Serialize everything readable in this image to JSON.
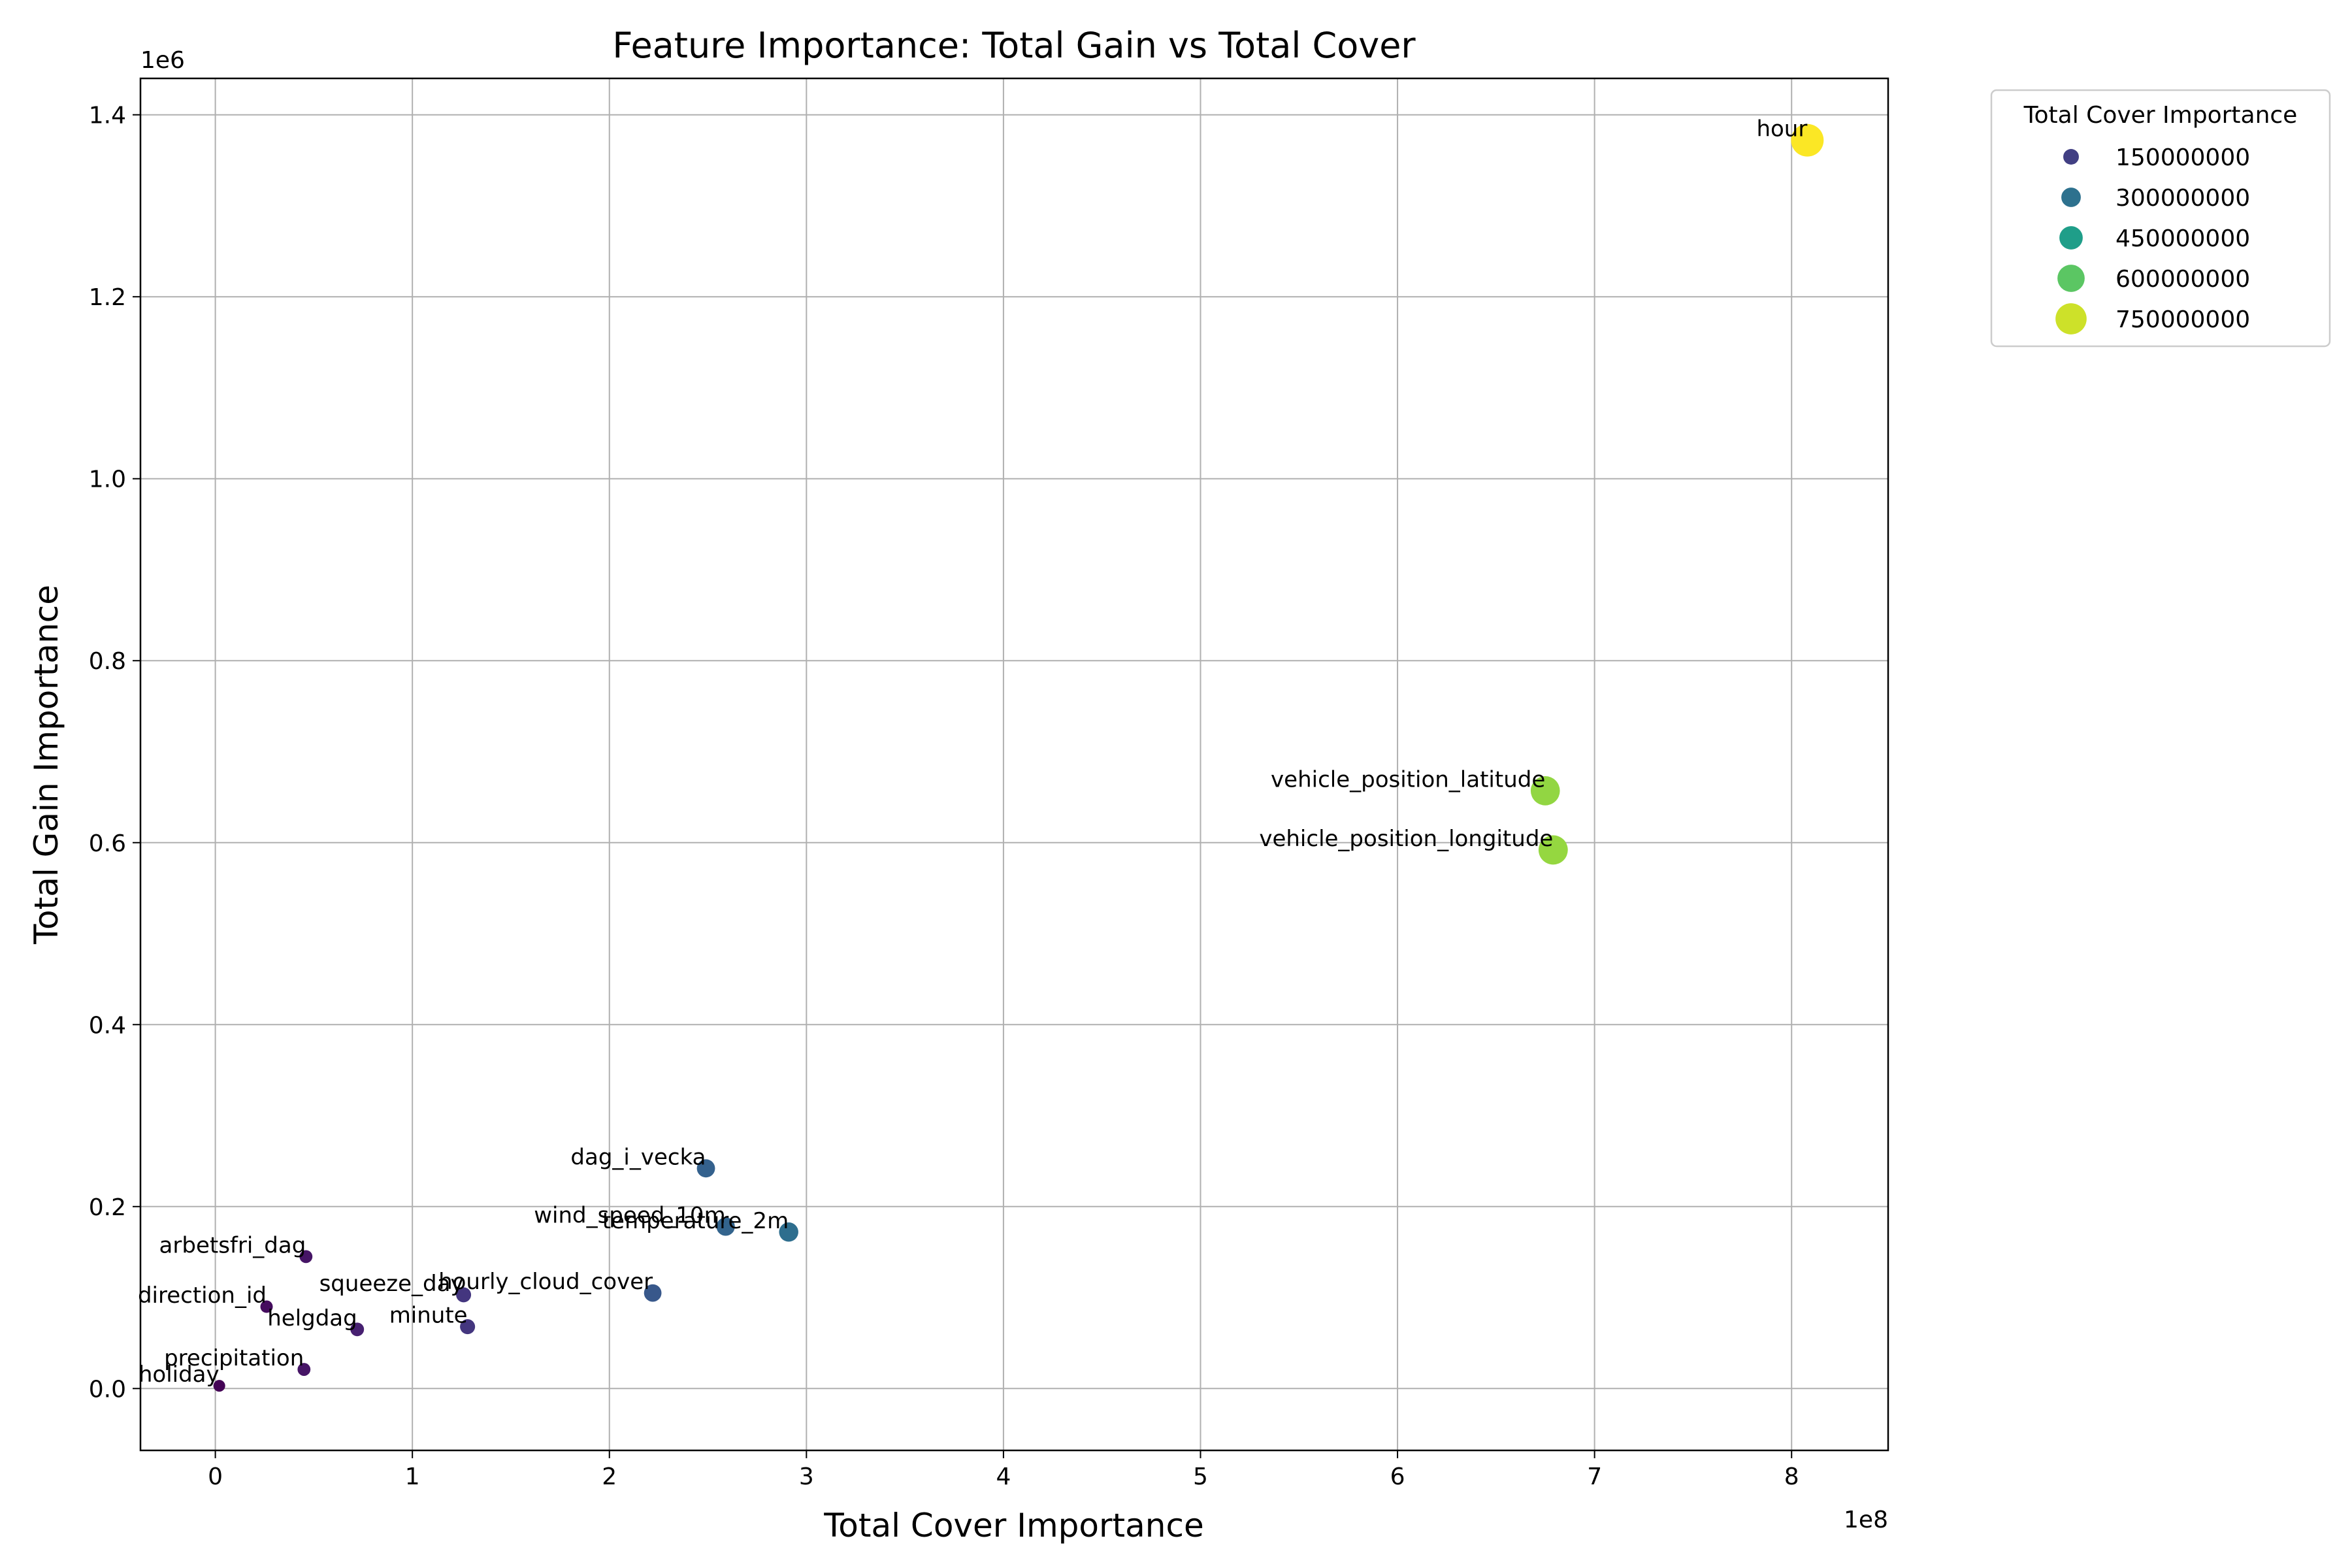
{
  "chart_data": {
    "type": "scatter",
    "title": "Feature Importance: Total Gain vs Total Cover",
    "xlabel": "Total Cover Importance",
    "ylabel": "Total Gain Importance",
    "x_offset_label": "1e8",
    "y_offset_label": "1e6",
    "x_scale": 100000000,
    "y_scale": 1000000,
    "xlim": [
      -38000000,
      849000000
    ],
    "ylim": [
      -68000,
      1440000
    ],
    "x_ticks": [
      {
        "value": 0,
        "label": "0"
      },
      {
        "value": 100000000,
        "label": "1"
      },
      {
        "value": 200000000,
        "label": "2"
      },
      {
        "value": 300000000,
        "label": "3"
      },
      {
        "value": 400000000,
        "label": "4"
      },
      {
        "value": 500000000,
        "label": "5"
      },
      {
        "value": 600000000,
        "label": "6"
      },
      {
        "value": 700000000,
        "label": "7"
      },
      {
        "value": 800000000,
        "label": "8"
      }
    ],
    "y_ticks": [
      {
        "value": 0,
        "label": "0.0"
      },
      {
        "value": 200000,
        "label": "0.2"
      },
      {
        "value": 400000,
        "label": "0.4"
      },
      {
        "value": 600000,
        "label": "0.6"
      },
      {
        "value": 800000,
        "label": "0.8"
      },
      {
        "value": 1000000,
        "label": "1.0"
      },
      {
        "value": 1200000,
        "label": "1.2"
      },
      {
        "value": 1400000,
        "label": "1.4"
      }
    ],
    "grid": true,
    "color_scale": "viridis",
    "color_range": [
      0,
      810000000
    ],
    "points": [
      {
        "label": "hour",
        "x": 808000000,
        "y": 1372000
      },
      {
        "label": "vehicle_position_latitude",
        "x": 675000000,
        "y": 657000
      },
      {
        "label": "vehicle_position_longitude",
        "x": 679000000,
        "y": 592000
      },
      {
        "label": "dag_i_vecka",
        "x": 249000000,
        "y": 242000
      },
      {
        "label": "temperature_2m",
        "x": 291000000,
        "y": 172000
      },
      {
        "label": "wind_speed_10m",
        "x": 259000000,
        "y": 178000
      },
      {
        "label": "hourly_cloud_cover",
        "x": 222000000,
        "y": 105000
      },
      {
        "label": "squeeze_day",
        "x": 126000000,
        "y": 103000
      },
      {
        "label": "minute",
        "x": 128000000,
        "y": 68000
      },
      {
        "label": "arbetsfri_dag",
        "x": 46000000,
        "y": 145000
      },
      {
        "label": "direction_id",
        "x": 26000000,
        "y": 90000
      },
      {
        "label": "helgdag",
        "x": 72000000,
        "y": 65000
      },
      {
        "label": "precipitation",
        "x": 45000000,
        "y": 21000
      },
      {
        "label": "holiday",
        "x": 2000000,
        "y": 3000
      }
    ],
    "legend": {
      "title": "Total Cover Importance",
      "position": "outside-top-right",
      "entries": [
        {
          "label": "150000000",
          "value": 150000000
        },
        {
          "label": "300000000",
          "value": 300000000
        },
        {
          "label": "450000000",
          "value": 450000000
        },
        {
          "label": "600000000",
          "value": 600000000
        },
        {
          "label": "750000000",
          "value": 750000000
        }
      ]
    }
  }
}
